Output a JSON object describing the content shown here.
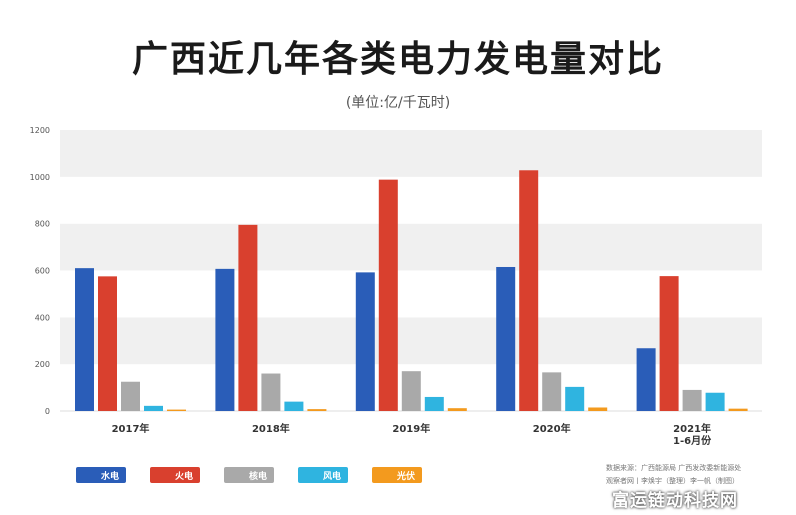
{
  "header": {
    "title": "广西近几年各类电力发电量对比",
    "subtitle": "(单位:亿/千瓦时)"
  },
  "colors": {
    "水电": "#2a5db8",
    "火电": "#d9402e",
    "核电": "#a9a9a9",
    "风电": "#2fb4e0",
    "光伏": "#f39a1e"
  },
  "chart_data": {
    "type": "bar",
    "categories": [
      "2017年",
      "2018年",
      "2019年",
      "2020年",
      "2021年\n1-6月份"
    ],
    "category_lines": [
      [
        "2017年"
      ],
      [
        "2018年"
      ],
      [
        "2019年"
      ],
      [
        "2020年"
      ],
      [
        "2021年",
        "1-6月份"
      ]
    ],
    "series": [
      {
        "name": "水电",
        "values": [
          610,
          607,
          592,
          615,
          268
        ]
      },
      {
        "name": "火电",
        "values": [
          575,
          795,
          988,
          1028,
          576
        ]
      },
      {
        "name": "核电",
        "values": [
          125,
          160,
          170,
          165,
          90
        ]
      },
      {
        "name": "风电",
        "values": [
          22,
          40,
          60,
          103,
          78
        ]
      },
      {
        "name": "光伏",
        "values": [
          6,
          8,
          12,
          15,
          10
        ]
      }
    ],
    "ylim": [
      0,
      1200
    ],
    "yticks": [
      "0",
      "200",
      "400",
      "600",
      "800",
      "1000",
      "1200"
    ],
    "ytick_values": [
      0,
      200,
      400,
      600,
      800,
      1000,
      1200
    ],
    "grid": true,
    "legend_placement": "bottom-left"
  },
  "footer": {
    "source_line1": "数据来源：广西能源局 广西发改委新能源处",
    "source_line2": "观察者网丨李焕宇（整理）李一帆（制图）",
    "watermark": "富运链动科技网"
  }
}
